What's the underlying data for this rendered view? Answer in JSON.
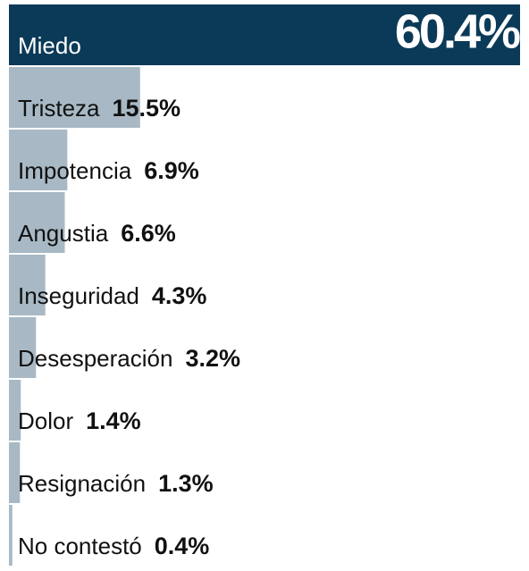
{
  "chart_data": {
    "type": "bar",
    "categories": [
      "Miedo",
      "Tristeza",
      "Impotencia",
      "Angustia",
      "Inseguridad",
      "Desesperación",
      "Dolor",
      "Resignación",
      "No contestó"
    ],
    "values": [
      60.4,
      15.5,
      6.9,
      6.6,
      4.3,
      3.2,
      1.4,
      1.3,
      0.4
    ],
    "value_labels": [
      "60.4%",
      "15.5%",
      "6.9%",
      "6.6%",
      "4.3%",
      "3.2%",
      "1.4%",
      "1.3%",
      "0.4%"
    ],
    "colors": [
      "#0b3a58",
      "#a8b9c5",
      "#a8b9c5",
      "#a8b9c5",
      "#a8b9c5",
      "#a8b9c5",
      "#a8b9c5",
      "#a8b9c5",
      "#a8b9c5"
    ]
  }
}
